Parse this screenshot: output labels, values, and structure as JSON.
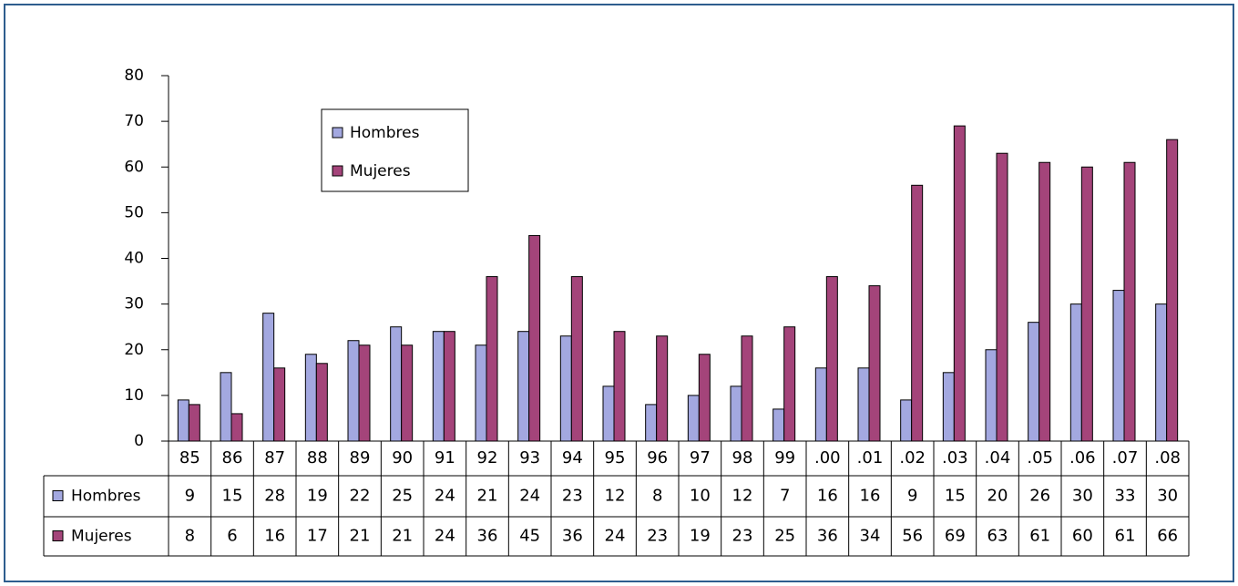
{
  "chart_data": {
    "type": "bar",
    "categories": [
      "85",
      "86",
      "87",
      "88",
      "89",
      "90",
      "91",
      "92",
      "93",
      "94",
      "95",
      "96",
      "97",
      "98",
      "99",
      ".00",
      ".01",
      ".02",
      ".03",
      ".04",
      ".05",
      ".06",
      ".07",
      ".08"
    ],
    "series": [
      {
        "name": "Hombres",
        "color": "#a3a8e0",
        "values": [
          9,
          15,
          28,
          19,
          22,
          25,
          24,
          21,
          24,
          23,
          12,
          8,
          10,
          12,
          7,
          16,
          16,
          9,
          15,
          20,
          26,
          30,
          33,
          30
        ]
      },
      {
        "name": "Mujeres",
        "color": "#a4447a",
        "values": [
          8,
          6,
          16,
          17,
          21,
          21,
          24,
          36,
          45,
          36,
          24,
          23,
          19,
          23,
          25,
          36,
          34,
          56,
          69,
          63,
          61,
          60,
          61,
          66
        ]
      }
    ],
    "ylim": [
      0,
      80
    ],
    "yticks": [
      0,
      10,
      20,
      30,
      40,
      50,
      60,
      70,
      80
    ]
  }
}
